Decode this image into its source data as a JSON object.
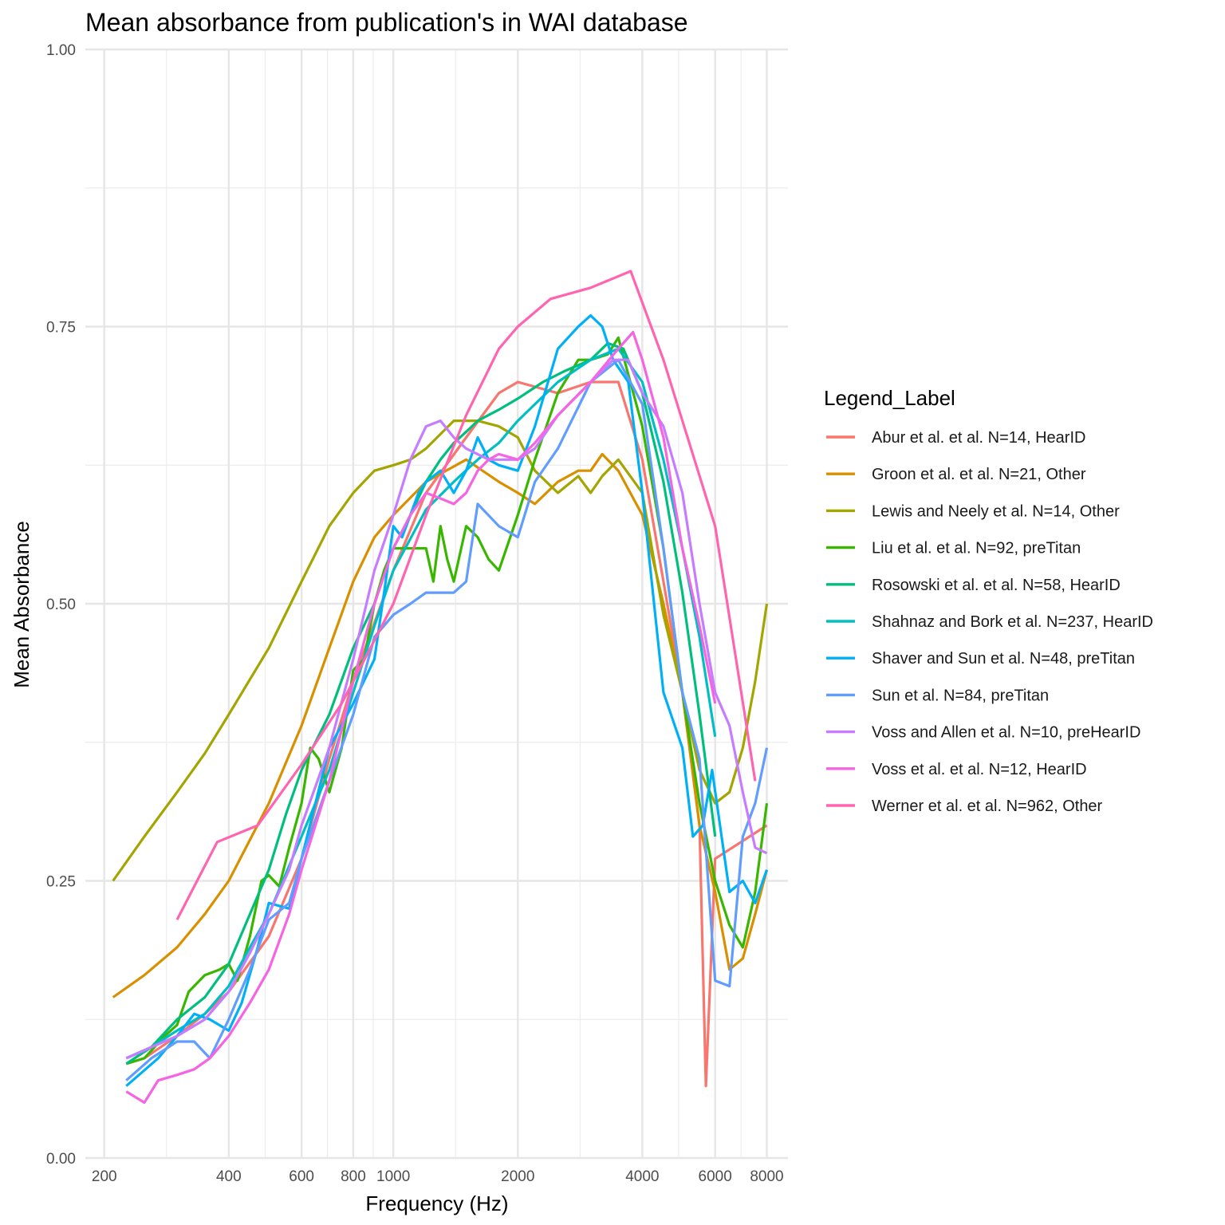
{
  "chart_data": {
    "type": "line",
    "title": "Mean absorbance from publication's in WAI database",
    "xlabel": "Frequency (Hz)",
    "ylabel": "Mean Absorbance",
    "x_scale": "log",
    "xlim": [
      180,
      9000
    ],
    "ylim": [
      0,
      1
    ],
    "x_ticks": [
      200,
      400,
      600,
      800,
      1000,
      2000,
      4000,
      6000,
      8000
    ],
    "x_tick_labels": [
      "200",
      "400",
      "600",
      "800",
      "1000",
      "2000",
      "4000",
      "6000",
      "8000"
    ],
    "y_ticks": [
      0,
      0.25,
      0.5,
      0.75,
      1
    ],
    "y_tick_labels": [
      "0.00",
      "0.25",
      "0.50",
      "0.75",
      "1.00"
    ],
    "grid": true,
    "legend": {
      "title": "Legend_Label",
      "position": "right"
    },
    "series": [
      {
        "name": "Abur et al. et al. N=14, HearID",
        "color": "#F8766D",
        "x": [
          226,
          250,
          300,
          350,
          400,
          500,
          600,
          700,
          800,
          1000,
          1200,
          1500,
          1800,
          2000,
          2500,
          3000,
          3500,
          4000,
          4500,
          5000,
          5500,
          5700,
          6000,
          8000
        ],
        "y": [
          0.085,
          0.09,
          0.11,
          0.13,
          0.15,
          0.2,
          0.27,
          0.36,
          0.43,
          0.53,
          0.6,
          0.65,
          0.69,
          0.7,
          0.69,
          0.7,
          0.7,
          0.63,
          0.52,
          0.42,
          0.3,
          0.065,
          0.27,
          0.3
        ]
      },
      {
        "name": "Groon et al. et al. N=21, Other",
        "color": "#D89000",
        "x": [
          210,
          250,
          300,
          350,
          400,
          500,
          600,
          700,
          800,
          900,
          1000,
          1200,
          1500,
          1800,
          2000,
          2200,
          2500,
          2800,
          3000,
          3200,
          3500,
          4000,
          4500,
          5000,
          5500,
          6000,
          6500,
          7000,
          7500,
          8000
        ],
        "y": [
          0.145,
          0.165,
          0.19,
          0.22,
          0.25,
          0.32,
          0.39,
          0.46,
          0.52,
          0.56,
          0.58,
          0.61,
          0.63,
          0.61,
          0.6,
          0.59,
          0.61,
          0.62,
          0.62,
          0.635,
          0.62,
          0.58,
          0.5,
          0.42,
          0.3,
          0.24,
          0.17,
          0.18,
          0.22,
          0.26
        ]
      },
      {
        "name": "Lewis and Neely et al. N=14, Other",
        "color": "#A3A500",
        "x": [
          210,
          250,
          300,
          350,
          400,
          500,
          600,
          700,
          800,
          900,
          1000,
          1100,
          1200,
          1400,
          1600,
          1800,
          2000,
          2200,
          2500,
          2800,
          3000,
          3200,
          3500,
          4000,
          4500,
          5000,
          5500,
          6000,
          6500,
          7000,
          7500,
          8000
        ],
        "y": [
          0.25,
          0.29,
          0.33,
          0.365,
          0.4,
          0.46,
          0.52,
          0.57,
          0.6,
          0.62,
          0.625,
          0.63,
          0.64,
          0.665,
          0.665,
          0.66,
          0.65,
          0.62,
          0.6,
          0.615,
          0.6,
          0.615,
          0.63,
          0.6,
          0.49,
          0.42,
          0.35,
          0.32,
          0.33,
          0.37,
          0.43,
          0.5
        ]
      },
      {
        "name": "Liu et al. et al. N=92, preTitan",
        "color": "#39B600",
        "x": [
          226,
          250,
          280,
          300,
          320,
          350,
          380,
          400,
          420,
          450,
          480,
          500,
          530,
          560,
          600,
          630,
          660,
          700,
          750,
          800,
          850,
          900,
          950,
          1000,
          1100,
          1200,
          1250,
          1300,
          1350,
          1400,
          1500,
          1600,
          1700,
          1800,
          2000,
          2200,
          2500,
          2800,
          3000,
          3300,
          3500,
          4000,
          4500,
          5000,
          5500,
          6000,
          6500,
          7000,
          7500,
          8000
        ],
        "y": [
          0.085,
          0.09,
          0.11,
          0.12,
          0.15,
          0.165,
          0.17,
          0.175,
          0.16,
          0.2,
          0.25,
          0.255,
          0.245,
          0.28,
          0.32,
          0.37,
          0.36,
          0.33,
          0.37,
          0.44,
          0.45,
          0.5,
          0.53,
          0.55,
          0.55,
          0.55,
          0.52,
          0.57,
          0.54,
          0.52,
          0.57,
          0.56,
          0.54,
          0.53,
          0.58,
          0.63,
          0.69,
          0.72,
          0.72,
          0.725,
          0.74,
          0.66,
          0.55,
          0.42,
          0.32,
          0.25,
          0.21,
          0.19,
          0.24,
          0.32
        ]
      },
      {
        "name": "Rosowski et al. et al. N=58, HearID",
        "color": "#00BF7D",
        "x": [
          226,
          260,
          300,
          350,
          400,
          450,
          500,
          550,
          600,
          700,
          800,
          900,
          1000,
          1100,
          1200,
          1300,
          1400,
          1500,
          1600,
          1800,
          2000,
          2300,
          2600,
          3000,
          3300,
          3600,
          4000,
          4500,
          5000,
          5500,
          6000
        ],
        "y": [
          0.085,
          0.1,
          0.125,
          0.145,
          0.175,
          0.22,
          0.26,
          0.31,
          0.35,
          0.4,
          0.46,
          0.5,
          0.55,
          0.58,
          0.61,
          0.63,
          0.645,
          0.655,
          0.665,
          0.675,
          0.685,
          0.7,
          0.71,
          0.72,
          0.735,
          0.73,
          0.69,
          0.61,
          0.51,
          0.4,
          0.29
        ]
      },
      {
        "name": "Shahnaz and Bork et al. N=237, HearID",
        "color": "#00BFC4",
        "x": [
          226,
          260,
          300,
          350,
          400,
          450,
          500,
          600,
          700,
          800,
          900,
          1000,
          1200,
          1400,
          1600,
          1800,
          2000,
          2500,
          3000,
          3500,
          4000,
          4500,
          5000,
          5500,
          6000
        ],
        "y": [
          0.09,
          0.1,
          0.115,
          0.13,
          0.155,
          0.19,
          0.22,
          0.29,
          0.35,
          0.42,
          0.48,
          0.53,
          0.585,
          0.61,
          0.63,
          0.645,
          0.665,
          0.7,
          0.72,
          0.73,
          0.7,
          0.63,
          0.55,
          0.47,
          0.38
        ]
      },
      {
        "name": "Shaver and Sun et al. N=48, preTitan",
        "color": "#00B0F6",
        "x": [
          226,
          270,
          300,
          330,
          360,
          400,
          430,
          470,
          500,
          560,
          600,
          700,
          800,
          900,
          950,
          1000,
          1050,
          1100,
          1150,
          1200,
          1300,
          1350,
          1400,
          1500,
          1600,
          1650,
          1700,
          1800,
          2000,
          2200,
          2500,
          2800,
          3000,
          3200,
          3400,
          3700,
          4000,
          4500,
          5000,
          5300,
          5600,
          5900,
          6500,
          7000,
          7500,
          8000
        ],
        "y": [
          0.065,
          0.09,
          0.11,
          0.13,
          0.125,
          0.115,
          0.14,
          0.19,
          0.23,
          0.225,
          0.27,
          0.37,
          0.41,
          0.45,
          0.51,
          0.57,
          0.56,
          0.58,
          0.6,
          0.61,
          0.62,
          0.61,
          0.6,
          0.62,
          0.65,
          0.64,
          0.63,
          0.625,
          0.62,
          0.66,
          0.73,
          0.75,
          0.76,
          0.75,
          0.72,
          0.7,
          0.6,
          0.42,
          0.37,
          0.29,
          0.3,
          0.35,
          0.24,
          0.25,
          0.23,
          0.26
        ]
      },
      {
        "name": "Sun et al. N=84, preTitan",
        "color": "#619CFF",
        "x": [
          226,
          260,
          300,
          330,
          360,
          400,
          450,
          500,
          560,
          600,
          700,
          800,
          900,
          1000,
          1100,
          1200,
          1300,
          1400,
          1500,
          1600,
          1800,
          2000,
          2200,
          2500,
          3000,
          3500,
          4000,
          4500,
          5000,
          5500,
          6000,
          6500,
          7000,
          7500,
          8000
        ],
        "y": [
          0.07,
          0.09,
          0.105,
          0.105,
          0.09,
          0.125,
          0.17,
          0.215,
          0.23,
          0.27,
          0.34,
          0.4,
          0.47,
          0.49,
          0.5,
          0.51,
          0.51,
          0.51,
          0.52,
          0.59,
          0.57,
          0.56,
          0.61,
          0.64,
          0.7,
          0.72,
          0.68,
          0.55,
          0.42,
          0.36,
          0.16,
          0.155,
          0.29,
          0.32,
          0.37
        ]
      },
      {
        "name": "Voss and Allen et al. N=10, preHearID",
        "color": "#C77CFF",
        "x": [
          226,
          260,
          300,
          350,
          400,
          450,
          500,
          560,
          600,
          700,
          800,
          900,
          1000,
          1100,
          1200,
          1300,
          1400,
          1500,
          1700,
          2000,
          2200,
          2500,
          3000,
          3400,
          3700,
          4000,
          4500,
          5000,
          5500,
          6000,
          6500,
          7000,
          7500,
          8000
        ],
        "y": [
          0.09,
          0.1,
          0.11,
          0.125,
          0.15,
          0.185,
          0.22,
          0.26,
          0.3,
          0.37,
          0.45,
          0.53,
          0.58,
          0.63,
          0.66,
          0.665,
          0.65,
          0.64,
          0.63,
          0.63,
          0.64,
          0.67,
          0.7,
          0.72,
          0.72,
          0.69,
          0.66,
          0.6,
          0.5,
          0.42,
          0.39,
          0.33,
          0.28,
          0.275
        ]
      },
      {
        "name": "Voss et al. et al. N=12, HearID",
        "color": "#F564E3",
        "x": [
          226,
          250,
          270,
          300,
          330,
          360,
          400,
          450,
          500,
          560,
          600,
          700,
          800,
          900,
          1000,
          1100,
          1200,
          1300,
          1400,
          1500,
          1600,
          1700,
          1800,
          2000,
          2200,
          2500,
          3000,
          3500,
          3800,
          4000,
          4500,
          5000,
          5500,
          6000
        ],
        "y": [
          0.06,
          0.05,
          0.07,
          0.075,
          0.08,
          0.09,
          0.11,
          0.14,
          0.17,
          0.22,
          0.26,
          0.34,
          0.43,
          0.5,
          0.55,
          0.58,
          0.6,
          0.595,
          0.59,
          0.6,
          0.62,
          0.63,
          0.635,
          0.63,
          0.645,
          0.67,
          0.7,
          0.73,
          0.745,
          0.72,
          0.65,
          0.55,
          0.48,
          0.41
        ]
      },
      {
        "name": "Werner et al. et al. N=962, Other",
        "color": "#FF64B0",
        "x": [
          300,
          375,
          470,
          600,
          750,
          1000,
          1200,
          1500,
          1800,
          2000,
          2400,
          3000,
          3750,
          4500,
          6000,
          7500
        ],
        "y": [
          0.215,
          0.285,
          0.3,
          0.355,
          0.41,
          0.5,
          0.58,
          0.67,
          0.73,
          0.75,
          0.775,
          0.785,
          0.8,
          0.72,
          0.57,
          0.34
        ]
      }
    ]
  }
}
